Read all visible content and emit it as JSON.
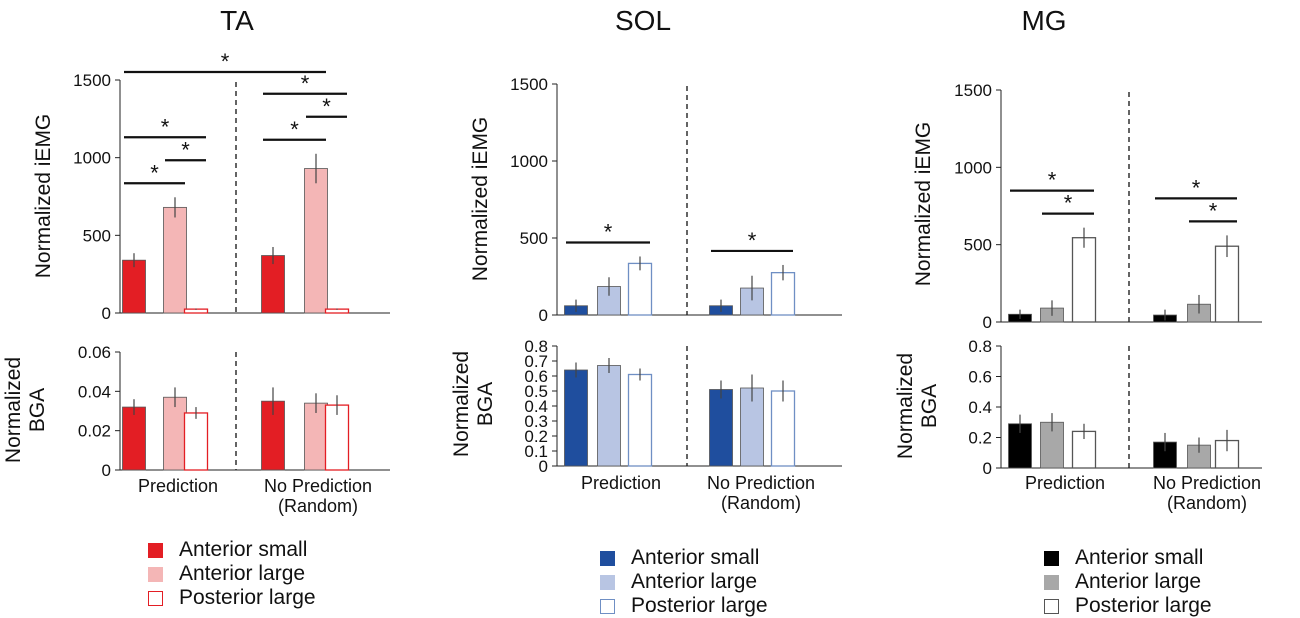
{
  "chart_data": [
    {
      "type": "bar",
      "muscle": "TA",
      "title": "TA",
      "groups": [
        "Prediction",
        "No Prediction\n(Random)"
      ],
      "series": [
        {
          "name": "Anterior small",
          "color": "#e31e24",
          "filled": true
        },
        {
          "name": "Anterior large",
          "color": "#f4b6b6",
          "filled": true
        },
        {
          "name": "Posterior large",
          "color": "#e31e24",
          "filled": false
        }
      ],
      "iemg": {
        "ylabel": "Normalized iEMG",
        "ylim": [
          0,
          1500
        ],
        "ticks": [
          "0",
          "500",
          "1000",
          "1500"
        ],
        "tick_values": [
          0,
          500,
          1000,
          1500
        ],
        "values": [
          [
            340,
            680,
            25
          ],
          [
            370,
            930,
            25
          ]
        ],
        "errors": [
          [
            45,
            65,
            4
          ],
          [
            55,
            95,
            4
          ]
        ],
        "significance": [
          {
            "from": [
              0,
              0
            ],
            "to": [
              0,
              1
            ],
            "level": 1,
            "label": "*"
          },
          {
            "from": [
              0,
              1
            ],
            "to": [
              0,
              2
            ],
            "level": 2,
            "label": "*"
          },
          {
            "from": [
              0,
              0
            ],
            "to": [
              0,
              2
            ],
            "level": 3,
            "label": "*"
          },
          {
            "from": [
              1,
              0
            ],
            "to": [
              1,
              1
            ],
            "level": 1,
            "label": "*"
          },
          {
            "from": [
              1,
              1
            ],
            "to": [
              1,
              2
            ],
            "level": 2,
            "label": "*"
          },
          {
            "from": [
              1,
              0
            ],
            "to": [
              1,
              2
            ],
            "level": 3,
            "label": "*"
          },
          {
            "from": [
              0,
              0
            ],
            "to": [
              1,
              1
            ],
            "level": 5,
            "label": "*"
          }
        ]
      },
      "bga": {
        "ylabel": "Normalized\nBGA",
        "ylim": [
          0,
          0.06
        ],
        "ticks": [
          "0",
          "0.02",
          "0.04",
          "0.06"
        ],
        "tick_values": [
          0,
          0.02,
          0.04,
          0.06
        ],
        "values": [
          [
            0.032,
            0.037,
            0.029
          ],
          [
            0.035,
            0.034,
            0.033
          ]
        ],
        "errors": [
          [
            0.004,
            0.005,
            0.003
          ],
          [
            0.007,
            0.005,
            0.005
          ]
        ]
      }
    },
    {
      "type": "bar",
      "muscle": "SOL",
      "title": "SOL",
      "groups": [
        "Prediction",
        "No Prediction\n(Random)"
      ],
      "series": [
        {
          "name": "Anterior small",
          "color": "#1f4e9e",
          "filled": true
        },
        {
          "name": "Anterior large",
          "color": "#b8c5e3",
          "filled": true
        },
        {
          "name": "Posterior large",
          "color": "#6f8fc4",
          "filled": false
        }
      ],
      "iemg": {
        "ylabel": "Normalized iEMG",
        "ylim": [
          0,
          1500
        ],
        "ticks": [
          "0",
          "500",
          "1000",
          "1500"
        ],
        "tick_values": [
          0,
          500,
          1000,
          1500
        ],
        "values": [
          [
            60,
            185,
            335
          ],
          [
            60,
            175,
            275
          ]
        ],
        "errors": [
          [
            40,
            60,
            45
          ],
          [
            40,
            80,
            50
          ]
        ],
        "significance": [
          {
            "from": [
              0,
              0
            ],
            "to": [
              0,
              2
            ],
            "level": 1,
            "label": "*"
          },
          {
            "from": [
              1,
              0
            ],
            "to": [
              1,
              2
            ],
            "level": 1,
            "label": "*"
          }
        ]
      },
      "bga": {
        "ylabel": "Normalized\nBGA",
        "ylim": [
          0,
          0.8
        ],
        "ticks": [
          "0",
          "0.1",
          "0.2",
          "0.3",
          "0.4",
          "0.5",
          "0.6",
          "0.7",
          "0.8"
        ],
        "tick_values": [
          0,
          0.1,
          0.2,
          0.3,
          0.4,
          0.5,
          0.6,
          0.7,
          0.8
        ],
        "values": [
          [
            0.64,
            0.67,
            0.61
          ],
          [
            0.51,
            0.52,
            0.5
          ]
        ],
        "errors": [
          [
            0.05,
            0.05,
            0.04
          ],
          [
            0.06,
            0.09,
            0.07
          ]
        ]
      }
    },
    {
      "type": "bar",
      "muscle": "MG",
      "title": "MG",
      "groups": [
        "Prediction",
        "No Prediction\n(Random)"
      ],
      "series": [
        {
          "name": "Anterior small",
          "color": "#000000",
          "filled": true
        },
        {
          "name": "Anterior large",
          "color": "#a8a8a8",
          "filled": true
        },
        {
          "name": "Posterior large",
          "color": "#555555",
          "filled": false
        }
      ],
      "iemg": {
        "ylabel": "Normalized iEMG",
        "ylim": [
          0,
          1500
        ],
        "ticks": [
          "0",
          "500",
          "1000",
          "1500"
        ],
        "tick_values": [
          0,
          500,
          1000,
          1500
        ],
        "values": [
          [
            50,
            90,
            545
          ],
          [
            45,
            115,
            490
          ]
        ],
        "errors": [
          [
            30,
            50,
            65
          ],
          [
            35,
            60,
            70
          ]
        ],
        "significance": [
          {
            "from": [
              0,
              1
            ],
            "to": [
              0,
              2
            ],
            "level": 1,
            "label": "*"
          },
          {
            "from": [
              0,
              0
            ],
            "to": [
              0,
              2
            ],
            "level": 2,
            "label": "*"
          },
          {
            "from": [
              1,
              1
            ],
            "to": [
              1,
              2
            ],
            "level": 1,
            "label": "*"
          },
          {
            "from": [
              1,
              0
            ],
            "to": [
              1,
              2
            ],
            "level": 2,
            "label": "*"
          }
        ]
      },
      "bga": {
        "ylabel": "Normalized\nBGA",
        "ylim": [
          0,
          0.8
        ],
        "ticks": [
          "0",
          "0.2",
          "0.4",
          "0.6",
          "0.8"
        ],
        "tick_values": [
          0,
          0.2,
          0.4,
          0.6,
          0.8
        ],
        "values": [
          [
            0.29,
            0.3,
            0.24
          ],
          [
            0.17,
            0.15,
            0.18
          ]
        ],
        "errors": [
          [
            0.06,
            0.06,
            0.05
          ],
          [
            0.06,
            0.05,
            0.07
          ]
        ]
      }
    }
  ]
}
